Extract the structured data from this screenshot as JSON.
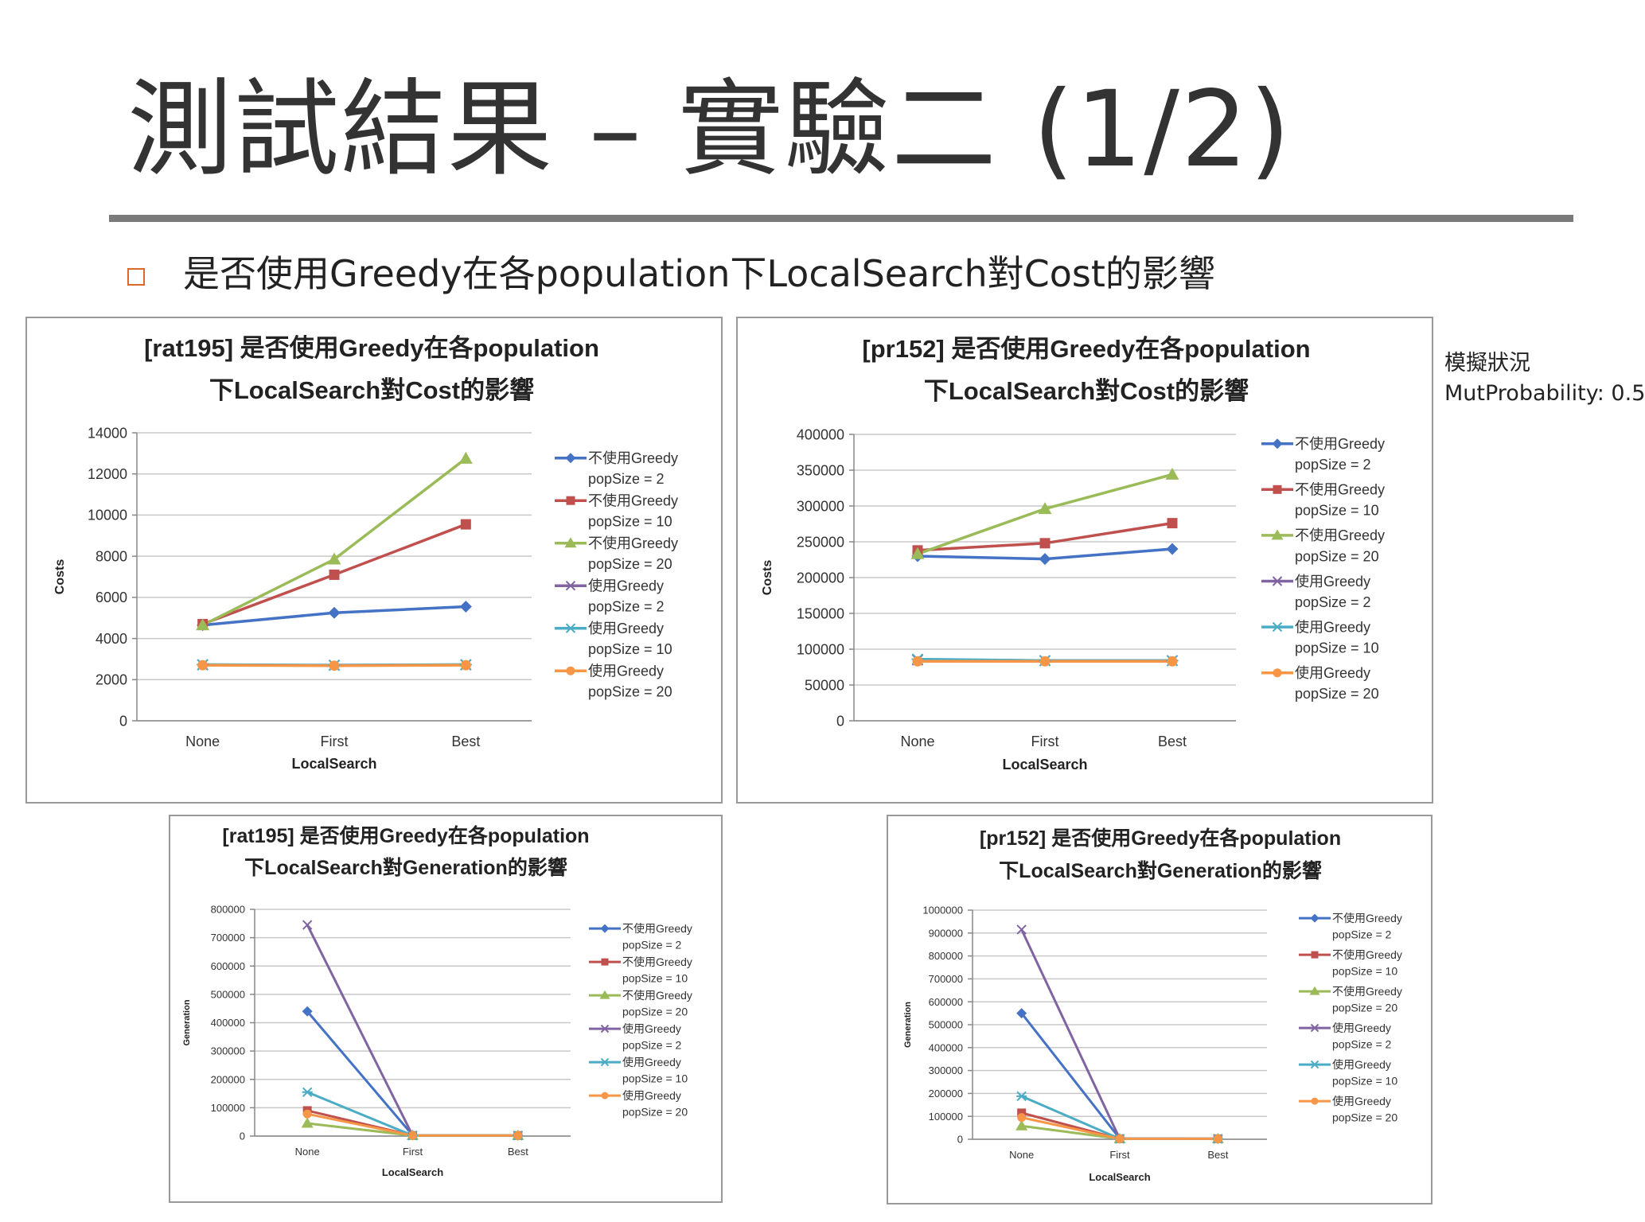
{
  "slide": {
    "title": "測試結果 – 實驗二 (1/2)",
    "bullet": "是否使用Greedy在各population下LocalSearch對Cost的影響",
    "side_note": [
      "模擬狀況",
      "MutProbability: 0.5"
    ]
  },
  "chart_data": [
    {
      "type": "line",
      "title": [
        "[rat195] 是否使用Greedy在各population",
        "下LocalSearch對Cost的影響"
      ],
      "xlabel": "LocalSearch",
      "ylabel": "Costs",
      "categories": [
        "None",
        "First",
        "Best"
      ],
      "ylim": [
        0,
        14000
      ],
      "yticks": [
        "0",
        "2000",
        "4000",
        "6000",
        "8000",
        "10000",
        "12000",
        "14000"
      ],
      "legend_position": "right",
      "series": [
        {
          "name": [
            "不使用Greedy",
            "popSize = 2"
          ],
          "values": [
            4650,
            5250,
            5550
          ],
          "color": "#4472c4",
          "marker": "diamond"
        },
        {
          "name": [
            "不使用Greedy",
            "popSize = 10"
          ],
          "values": [
            4700,
            7100,
            9550
          ],
          "color": "#c0504d",
          "marker": "square"
        },
        {
          "name": [
            "不使用Greedy",
            "popSize = 20"
          ],
          "values": [
            4650,
            7850,
            12750
          ],
          "color": "#9bbb59",
          "marker": "triangle"
        },
        {
          "name": [
            "使用Greedy",
            "popSize = 2"
          ],
          "values": [
            2720,
            2700,
            2720
          ],
          "color": "#8064a2",
          "marker": "x"
        },
        {
          "name": [
            "使用Greedy",
            "popSize = 10"
          ],
          "values": [
            2730,
            2700,
            2730
          ],
          "color": "#4bacc6",
          "marker": "star"
        },
        {
          "name": [
            "使用Greedy",
            "popSize = 20"
          ],
          "values": [
            2700,
            2680,
            2700
          ],
          "color": "#f79646",
          "marker": "circle"
        }
      ]
    },
    {
      "type": "line",
      "title": [
        "[pr152] 是否使用Greedy在各population",
        "下LocalSearch對Cost的影響"
      ],
      "xlabel": "LocalSearch",
      "ylabel": "Costs",
      "categories": [
        "None",
        "First",
        "Best"
      ],
      "ylim": [
        0,
        400000
      ],
      "yticks": [
        "0",
        "50000",
        "100000",
        "150000",
        "200000",
        "250000",
        "300000",
        "350000",
        "400000"
      ],
      "legend_position": "right",
      "series": [
        {
          "name": [
            "不使用Greedy",
            "popSize = 2"
          ],
          "values": [
            230000,
            226000,
            240000
          ],
          "color": "#4472c4",
          "marker": "diamond"
        },
        {
          "name": [
            "不使用Greedy",
            "popSize = 10"
          ],
          "values": [
            238000,
            248000,
            276000
          ],
          "color": "#c0504d",
          "marker": "square"
        },
        {
          "name": [
            "不使用Greedy",
            "popSize = 20"
          ],
          "values": [
            233000,
            296000,
            344000
          ],
          "color": "#9bbb59",
          "marker": "triangle"
        },
        {
          "name": [
            "使用Greedy",
            "popSize = 2"
          ],
          "values": [
            85000,
            84000,
            84000
          ],
          "color": "#8064a2",
          "marker": "x"
        },
        {
          "name": [
            "使用Greedy",
            "popSize = 10"
          ],
          "values": [
            86000,
            84000,
            84000
          ],
          "color": "#4bacc6",
          "marker": "star"
        },
        {
          "name": [
            "使用Greedy",
            "popSize = 20"
          ],
          "values": [
            83000,
            83000,
            83000
          ],
          "color": "#f79646",
          "marker": "circle"
        }
      ]
    },
    {
      "type": "line",
      "title": [
        "[rat195] 是否使用Greedy在各population",
        "下LocalSearch對Generation的影響"
      ],
      "xlabel": "LocalSearch",
      "ylabel": "Generation",
      "categories": [
        "None",
        "First",
        "Best"
      ],
      "ylim": [
        0,
        800000
      ],
      "yticks": [
        "0",
        "100000",
        "200000",
        "300000",
        "400000",
        "500000",
        "600000",
        "700000",
        "800000"
      ],
      "legend_position": "right",
      "series": [
        {
          "name": [
            "不使用Greedy",
            "popSize = 2"
          ],
          "values": [
            440000,
            3000,
            2000
          ],
          "color": "#4472c4",
          "marker": "diamond"
        },
        {
          "name": [
            "不使用Greedy",
            "popSize = 10"
          ],
          "values": [
            90000,
            2000,
            2000
          ],
          "color": "#c0504d",
          "marker": "square"
        },
        {
          "name": [
            "不使用Greedy",
            "popSize = 20"
          ],
          "values": [
            45000,
            2000,
            2000
          ],
          "color": "#9bbb59",
          "marker": "triangle"
        },
        {
          "name": [
            "使用Greedy",
            "popSize = 2"
          ],
          "values": [
            745000,
            2000,
            2000
          ],
          "color": "#8064a2",
          "marker": "x"
        },
        {
          "name": [
            "使用Greedy",
            "popSize = 10"
          ],
          "values": [
            155000,
            2000,
            2000
          ],
          "color": "#4bacc6",
          "marker": "star"
        },
        {
          "name": [
            "使用Greedy",
            "popSize = 20"
          ],
          "values": [
            78000,
            2000,
            2000
          ],
          "color": "#f79646",
          "marker": "circle"
        }
      ]
    },
    {
      "type": "line",
      "title": [
        "[pr152] 是否使用Greedy在各population",
        "下LocalSearch對Generation的影響"
      ],
      "xlabel": "LocalSearch",
      "ylabel": "Generation",
      "categories": [
        "None",
        "First",
        "Best"
      ],
      "ylim": [
        0,
        1000000
      ],
      "yticks": [
        "0",
        "100000",
        "200000",
        "300000",
        "400000",
        "500000",
        "600000",
        "700000",
        "800000",
        "900000",
        "1000000"
      ],
      "legend_position": "right",
      "series": [
        {
          "name": [
            "不使用Greedy",
            "popSize = 2"
          ],
          "values": [
            550000,
            3000,
            2000
          ],
          "color": "#4472c4",
          "marker": "diamond"
        },
        {
          "name": [
            "不使用Greedy",
            "popSize = 10"
          ],
          "values": [
            115000,
            2000,
            2000
          ],
          "color": "#c0504d",
          "marker": "square"
        },
        {
          "name": [
            "不使用Greedy",
            "popSize = 20"
          ],
          "values": [
            58000,
            2000,
            2000
          ],
          "color": "#9bbb59",
          "marker": "triangle"
        },
        {
          "name": [
            "使用Greedy",
            "popSize = 2"
          ],
          "values": [
            915000,
            2000,
            2000
          ],
          "color": "#8064a2",
          "marker": "x"
        },
        {
          "name": [
            "使用Greedy",
            "popSize = 10"
          ],
          "values": [
            188000,
            2000,
            2000
          ],
          "color": "#4bacc6",
          "marker": "star"
        },
        {
          "name": [
            "使用Greedy",
            "popSize = 20"
          ],
          "values": [
            95000,
            2000,
            2000
          ],
          "color": "#f79646",
          "marker": "circle"
        }
      ]
    }
  ]
}
